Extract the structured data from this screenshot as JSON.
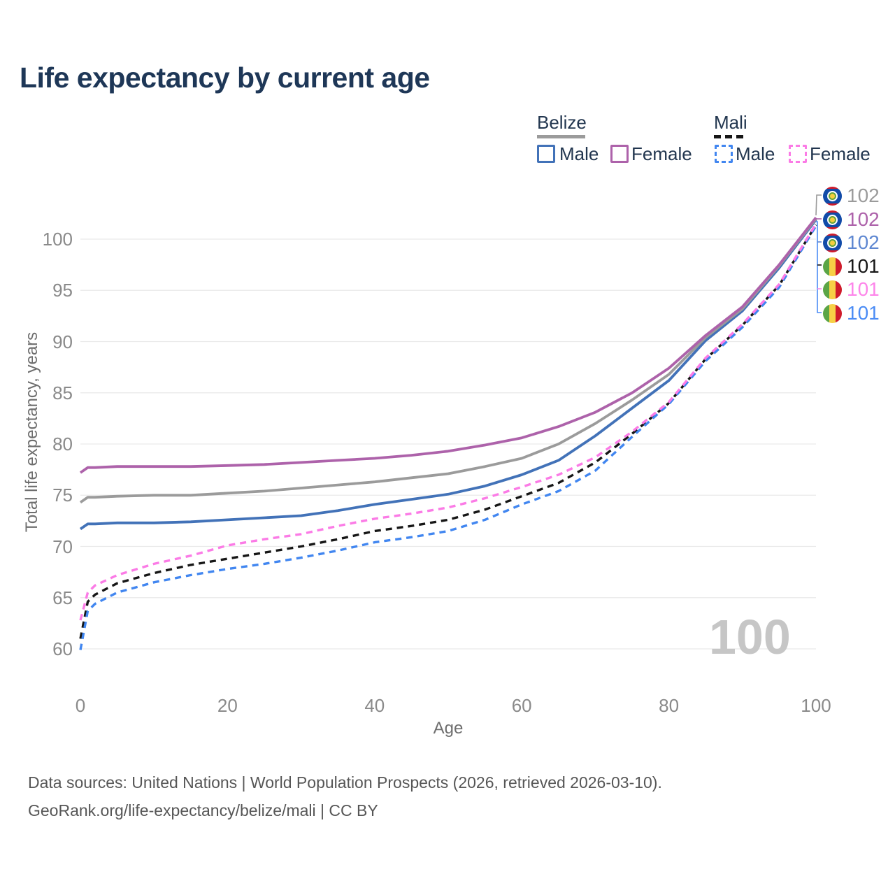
{
  "title": "Life expectancy by current age",
  "watermark": "100",
  "legend": {
    "groups": [
      {
        "label": "Belize",
        "line_style": "solid",
        "line_color": "#9b9b9b"
      },
      {
        "label": "Mali",
        "line_style": "dashed",
        "line_color": "#161616"
      }
    ],
    "items": [
      {
        "label": "Male",
        "color": "#4272b8",
        "dashed": false,
        "country": "Belize"
      },
      {
        "label": "Female",
        "color": "#ad62aa",
        "dashed": false,
        "country": "Belize"
      },
      {
        "label": "Male",
        "color": "#4186f0",
        "dashed": true,
        "country": "Mali"
      },
      {
        "label": "Female",
        "color": "#fb7be6",
        "dashed": true,
        "country": "Mali"
      }
    ]
  },
  "chart_data": {
    "type": "line",
    "title": "Life expectancy by current age",
    "xlabel": "Age",
    "ylabel": "Total life expectancy, years",
    "xlim": [
      0,
      100
    ],
    "ylim": [
      60,
      100
    ],
    "x_ticks": [
      0,
      20,
      40,
      60,
      80,
      100
    ],
    "y_ticks": [
      60,
      65,
      70,
      75,
      80,
      85,
      90,
      95,
      100
    ],
    "grid": true,
    "legend_position": "top-right",
    "x": [
      0,
      1,
      2,
      5,
      10,
      15,
      20,
      25,
      30,
      35,
      40,
      45,
      50,
      55,
      60,
      65,
      70,
      75,
      80,
      85,
      90,
      95,
      100
    ],
    "series": [
      {
        "name": "Belize Male",
        "country": "Belize",
        "sex": "Male",
        "color": "#4272b8",
        "dashed": false,
        "end_label": "102",
        "values": [
          71.7,
          72.2,
          72.2,
          72.3,
          72.3,
          72.4,
          72.6,
          72.8,
          73.0,
          73.5,
          74.1,
          74.6,
          75.1,
          75.9,
          77.0,
          78.4,
          80.8,
          83.5,
          86.2,
          90.1,
          93.0,
          97.2,
          101.9
        ]
      },
      {
        "name": "Belize Both sexes",
        "country": "Belize",
        "sex": "Both",
        "color": "#9b9b9b",
        "dashed": false,
        "end_label": "102",
        "values": [
          74.3,
          74.8,
          74.8,
          74.9,
          75.0,
          75.0,
          75.2,
          75.4,
          75.7,
          76.0,
          76.3,
          76.7,
          77.1,
          77.8,
          78.6,
          80.0,
          82.0,
          84.3,
          86.8,
          90.4,
          93.2,
          97.4,
          102.0
        ]
      },
      {
        "name": "Belize Female",
        "country": "Belize",
        "sex": "Female",
        "color": "#ad62aa",
        "dashed": false,
        "end_label": "102",
        "values": [
          77.2,
          77.7,
          77.7,
          77.8,
          77.8,
          77.8,
          77.9,
          78.0,
          78.2,
          78.4,
          78.6,
          78.9,
          79.3,
          79.9,
          80.6,
          81.7,
          83.1,
          85.0,
          87.4,
          90.6,
          93.4,
          97.5,
          102.1
        ]
      },
      {
        "name": "Mali Both sexes",
        "country": "Mali",
        "sex": "Both",
        "color": "#161616",
        "dashed": true,
        "end_label": "101",
        "values": [
          61.0,
          64.6,
          65.3,
          66.4,
          67.4,
          68.2,
          68.8,
          69.4,
          70.0,
          70.7,
          71.5,
          72.0,
          72.6,
          73.6,
          74.9,
          76.2,
          78.2,
          81.0,
          84.0,
          88.3,
          91.6,
          95.5,
          101.4
        ]
      },
      {
        "name": "Mali Male",
        "country": "Mali",
        "sex": "Male",
        "color": "#4186f0",
        "dashed": true,
        "end_label": "101",
        "values": [
          59.9,
          63.7,
          64.4,
          65.5,
          66.5,
          67.2,
          67.8,
          68.3,
          68.9,
          69.6,
          70.4,
          70.9,
          71.5,
          72.6,
          74.1,
          75.4,
          77.4,
          80.7,
          83.9,
          88.1,
          91.4,
          95.3,
          101.3
        ]
      },
      {
        "name": "Mali Female",
        "country": "Mali",
        "sex": "Female",
        "color": "#fb7be6",
        "dashed": true,
        "end_label": "101",
        "values": [
          62.8,
          65.5,
          66.2,
          67.2,
          68.3,
          69.1,
          70.1,
          70.7,
          71.2,
          72.0,
          72.7,
          73.2,
          73.8,
          74.7,
          75.8,
          77.0,
          78.7,
          81.2,
          84.1,
          88.4,
          91.7,
          95.6,
          101.5
        ]
      }
    ]
  },
  "end_labels": [
    {
      "flag": "belize",
      "value": "102",
      "color": "#9b9b9b",
      "series": "Belize Both sexes"
    },
    {
      "flag": "belize",
      "value": "102",
      "color": "#ad62aa",
      "series": "Belize Female"
    },
    {
      "flag": "belize",
      "value": "102",
      "color": "#5e87d1",
      "series": "Belize Male"
    },
    {
      "flag": "mali",
      "value": "101",
      "color": "#161616",
      "series": "Mali Both sexes"
    },
    {
      "flag": "mali",
      "value": "101",
      "color": "#fd85ea",
      "series": "Mali Female"
    },
    {
      "flag": "mali",
      "value": "101",
      "color": "#4b8cf5",
      "series": "Mali Male"
    }
  ],
  "footer": {
    "line1": "Data sources: United Nations | World Population Prospects (2026, retrieved 2026-03-10).",
    "line2": "GeoRank.org/life-expectancy/belize/mali | CC BY"
  }
}
